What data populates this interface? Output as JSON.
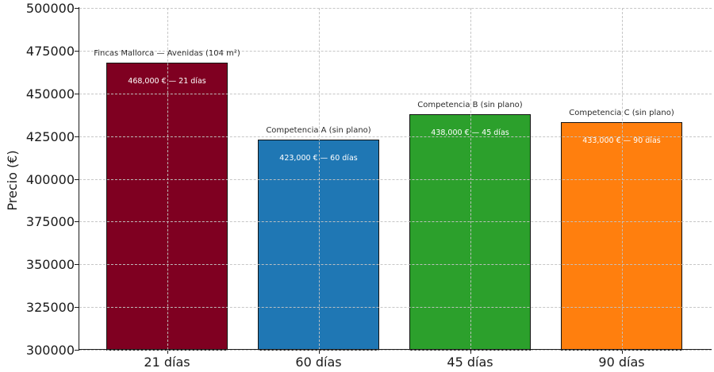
{
  "chart_data": {
    "type": "bar",
    "title": "",
    "xlabel": "",
    "ylabel": "Precio (€)",
    "ylim": [
      300000,
      500000
    ],
    "yticks": [
      300000,
      325000,
      350000,
      375000,
      400000,
      425000,
      450000,
      475000,
      500000
    ],
    "categories": [
      "21 días",
      "60 días",
      "45 días",
      "90 días"
    ],
    "grid": {
      "style": "dashed",
      "color": "#c3c3c3",
      "horizontal": true,
      "vertical": true
    },
    "legend": "none",
    "bars": [
      {
        "name": "Fincas Mallorca — Avenidas (104 m²)",
        "value": 468000,
        "inner_label": "468,000 € — 21 días",
        "color": "#7f0021"
      },
      {
        "name": "Competencia A (sin plano)",
        "value": 423000,
        "inner_label": "423,000 € — 60 días",
        "color": "#1f77b4"
      },
      {
        "name": "Competencia B (sin plano)",
        "value": 438000,
        "inner_label": "438,000 € — 45 días",
        "color": "#2ca02c"
      },
      {
        "name": "Competencia C (sin plano)",
        "value": 433000,
        "inner_label": "433,000 € — 90 días",
        "color": "#ff7f0e"
      }
    ],
    "bar_edge_color": "#121212",
    "inner_label_color": "#ffffff",
    "annotation_color": "#2b2b2b"
  }
}
